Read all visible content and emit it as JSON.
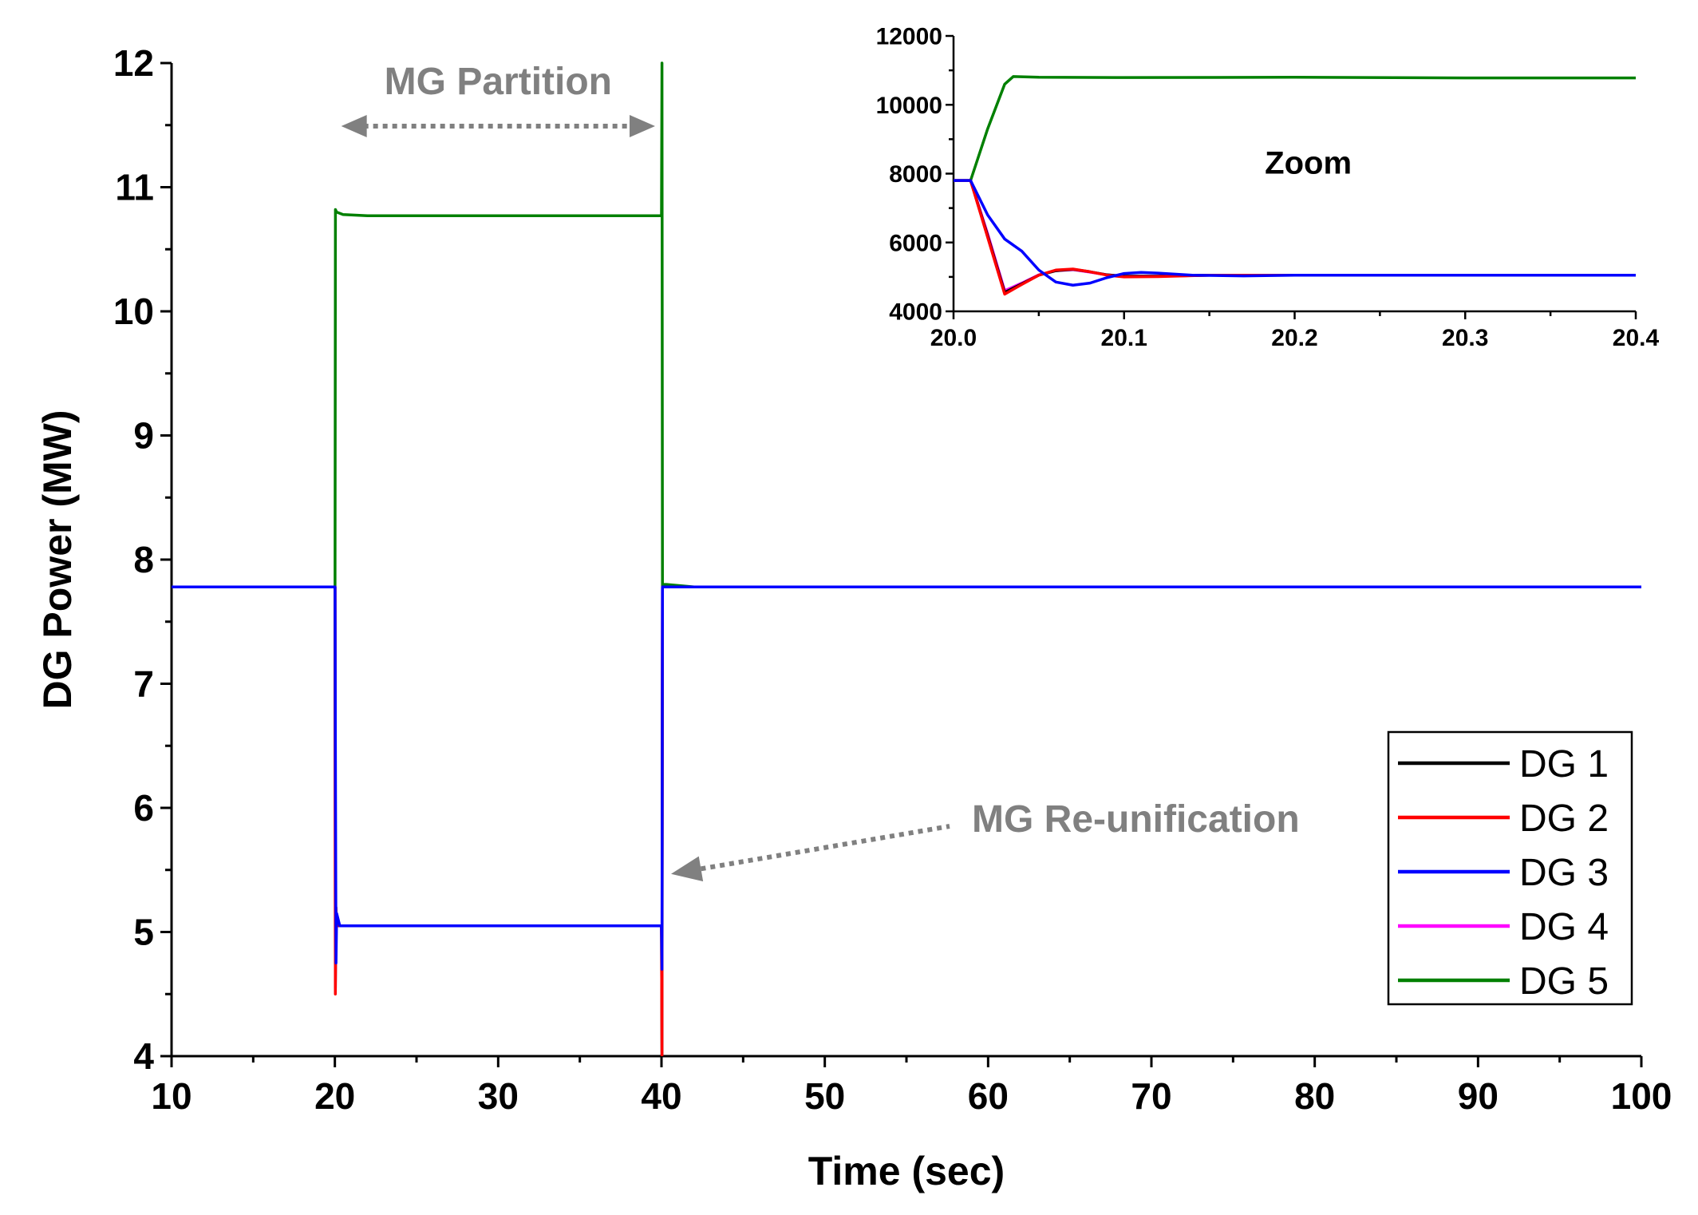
{
  "chart_data": [
    {
      "type": "line",
      "role": "main",
      "xlabel": "Time (sec)",
      "ylabel": "DG Power (MW)",
      "xlim": [
        10,
        100
      ],
      "ylim": [
        4,
        12
      ],
      "xticks": [
        "10",
        "20",
        "30",
        "40",
        "50",
        "60",
        "70",
        "80",
        "90",
        "100"
      ],
      "yticks": [
        "4",
        "5",
        "6",
        "7",
        "8",
        "9",
        "10",
        "11",
        "12"
      ],
      "annotations": [
        {
          "text": "MG Partition"
        },
        {
          "text": "MG Re-unification"
        }
      ],
      "series": [
        {
          "name": "DG 1",
          "color": "#000000",
          "x": [
            10,
            20,
            20.01,
            20.03,
            20.06,
            20.1,
            20.3,
            40.0,
            40.03,
            40.06,
            40.1,
            40.3,
            100
          ],
          "y": [
            7.78,
            7.78,
            7.78,
            4.55,
            5.2,
            5.05,
            5.05,
            5.05,
            4.0,
            7.78,
            7.78,
            7.78,
            7.78
          ]
        },
        {
          "name": "DG 2",
          "color": "#ff0000",
          "x": [
            10,
            20,
            20.01,
            20.03,
            20.06,
            20.1,
            20.3,
            40.0,
            40.03,
            40.06,
            40.1,
            40.3,
            100
          ],
          "y": [
            7.78,
            7.78,
            7.78,
            4.5,
            5.2,
            5.05,
            5.05,
            5.05,
            4.0,
            7.78,
            7.78,
            7.78,
            7.78
          ]
        },
        {
          "name": "DG 3",
          "color": "#0000ff",
          "x": [
            10,
            20,
            20.01,
            20.04,
            20.07,
            20.11,
            20.3,
            40.0,
            40.03,
            40.06,
            40.1,
            40.3,
            100
          ],
          "y": [
            7.78,
            7.78,
            7.78,
            6.1,
            4.75,
            5.15,
            5.05,
            5.05,
            4.7,
            7.78,
            7.78,
            7.78,
            7.78
          ]
        },
        {
          "name": "DG 4",
          "color": "#ff00ff",
          "x": [
            10,
            20,
            20.01,
            20.03,
            20.06,
            20.1,
            20.3,
            40.0,
            40.03,
            40.06,
            40.1,
            40.3,
            100
          ],
          "y": [
            7.78,
            7.78,
            7.78,
            4.6,
            5.2,
            5.05,
            5.05,
            5.05,
            4.8,
            7.78,
            7.78,
            7.78,
            7.78
          ]
        },
        {
          "name": "DG 5",
          "color": "#008000",
          "x": [
            10,
            20,
            20.01,
            20.035,
            20.1,
            20.5,
            22,
            40.0,
            40.03,
            40.06,
            40.1,
            40.3,
            42,
            100
          ],
          "y": [
            7.78,
            7.78,
            7.78,
            10.82,
            10.8,
            10.78,
            10.77,
            10.77,
            12.0,
            7.78,
            7.8,
            7.8,
            7.78,
            7.78
          ]
        }
      ],
      "legend": {
        "position": "bottom-right",
        "entries": [
          "DG 1",
          "DG 2",
          "DG 3",
          "DG 4",
          "DG 5"
        ]
      }
    },
    {
      "type": "line",
      "role": "inset",
      "title": "Zoom",
      "xlim": [
        20.0,
        20.4
      ],
      "ylim": [
        4000,
        12000
      ],
      "xticks": [
        "20.0",
        "20.1",
        "20.2",
        "20.3",
        "20.4"
      ],
      "yticks": [
        "4000",
        "6000",
        "8000",
        "10000",
        "12000"
      ],
      "series": [
        {
          "name": "DG 1",
          "color": "#000000",
          "x": [
            20.0,
            20.01,
            20.02,
            20.03,
            20.04,
            20.05,
            20.06,
            20.07,
            20.08,
            20.09,
            20.1,
            20.12,
            20.15,
            20.2,
            20.3,
            20.4
          ],
          "y": [
            7800,
            7800,
            6200,
            4550,
            4800,
            5050,
            5180,
            5220,
            5150,
            5060,
            5020,
            5020,
            5050,
            5050,
            5050,
            5050
          ]
        },
        {
          "name": "DG 2",
          "color": "#ff0000",
          "x": [
            20.0,
            20.01,
            20.02,
            20.03,
            20.04,
            20.05,
            20.06,
            20.07,
            20.08,
            20.09,
            20.1,
            20.12,
            20.15,
            20.2,
            20.3,
            20.4
          ],
          "y": [
            7800,
            7800,
            6150,
            4500,
            4780,
            5050,
            5200,
            5230,
            5150,
            5050,
            5000,
            5010,
            5050,
            5050,
            5050,
            5050
          ]
        },
        {
          "name": "DG 3",
          "color": "#0000ff",
          "x": [
            20.0,
            20.01,
            20.02,
            20.03,
            20.04,
            20.05,
            20.06,
            20.07,
            20.08,
            20.09,
            20.1,
            20.11,
            20.12,
            20.14,
            20.17,
            20.2,
            20.3,
            20.4
          ],
          "y": [
            7800,
            7800,
            6800,
            6100,
            5750,
            5200,
            4850,
            4760,
            4820,
            4980,
            5100,
            5130,
            5110,
            5050,
            5030,
            5050,
            5050,
            5050
          ]
        },
        {
          "name": "DG 4",
          "color": "#ff00ff",
          "x": [
            20.0,
            20.01,
            20.02,
            20.03,
            20.04,
            20.05,
            20.06,
            20.07,
            20.08,
            20.09,
            20.1,
            20.12,
            20.15,
            20.2,
            20.3,
            20.4
          ],
          "y": [
            7800,
            7800,
            6250,
            4600,
            4820,
            5060,
            5180,
            5210,
            5140,
            5060,
            5020,
            5020,
            5050,
            5050,
            5050,
            5050
          ]
        },
        {
          "name": "DG 5",
          "color": "#008000",
          "x": [
            20.0,
            20.01,
            20.02,
            20.03,
            20.035,
            20.05,
            20.1,
            20.2,
            20.3,
            20.4
          ],
          "y": [
            7800,
            7800,
            9300,
            10600,
            10820,
            10800,
            10790,
            10800,
            10780,
            10780
          ]
        }
      ]
    }
  ]
}
